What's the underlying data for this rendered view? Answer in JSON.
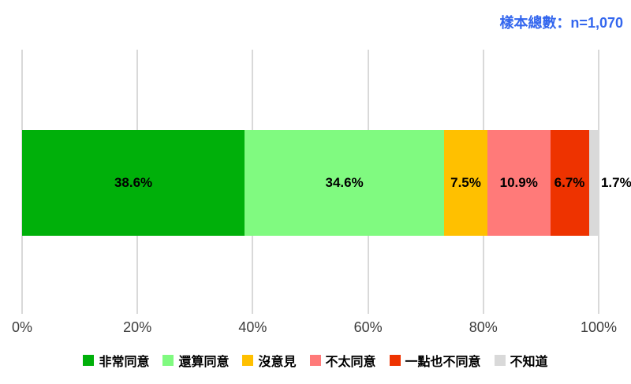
{
  "header": {
    "sample_note": "樣本總數：n=1,070"
  },
  "chart_data": {
    "type": "bar",
    "orientation": "horizontal",
    "stacked": true,
    "title": "",
    "unit": "%",
    "x_axis": {
      "ticks": [
        "0%",
        "20%",
        "40%",
        "60%",
        "80%",
        "100%"
      ],
      "range": [
        0,
        100
      ],
      "grid": true
    },
    "series": [
      {
        "name": "非常同意",
        "value": 38.6,
        "label": "38.6%",
        "color": "#00b00a",
        "label_position": "inside"
      },
      {
        "name": "還算同意",
        "value": 34.6,
        "label": "34.6%",
        "color": "#80fa80",
        "label_position": "inside"
      },
      {
        "name": "沒意見",
        "value": 7.5,
        "label": "7.5%",
        "color": "#ffc000",
        "label_position": "inside"
      },
      {
        "name": "不太同意",
        "value": 10.9,
        "label": "10.9%",
        "color": "#ff7a79",
        "label_position": "inside"
      },
      {
        "name": "一點也不同意",
        "value": 6.7,
        "label": "6.7%",
        "color": "#ee3300",
        "label_position": "inside"
      },
      {
        "name": "不知道",
        "value": 1.7,
        "label": "1.7%",
        "color": "#d9d9d9",
        "label_position": "outside"
      }
    ],
    "legend_position": "bottom",
    "sample_size": "n=1,070"
  },
  "colors": {
    "sample_note": "#3366ee",
    "gridline": "#d9d9d9",
    "axis_label": "#3d3d3d",
    "bar_label": "#000000",
    "background": "#ffffff"
  }
}
